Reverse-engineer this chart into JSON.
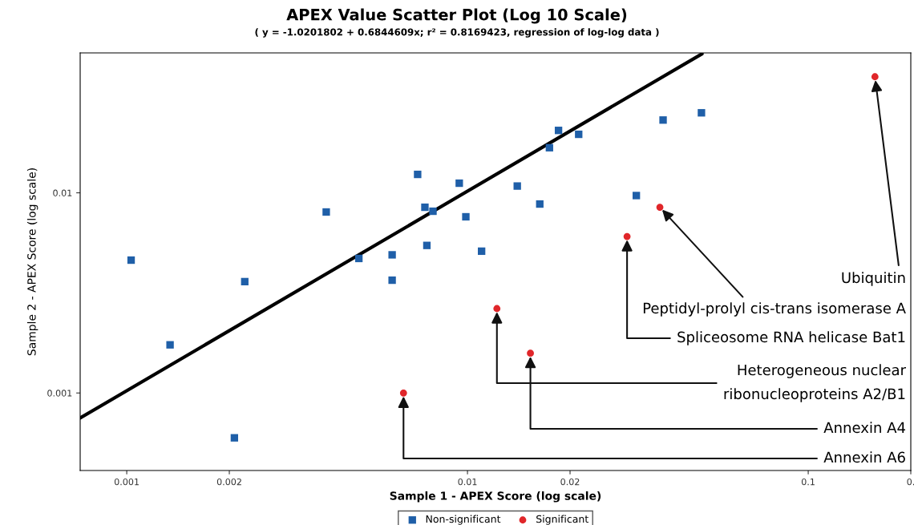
{
  "chart_data": {
    "type": "scatter",
    "title": "APEX Value Scatter Plot (Log 10 Scale)",
    "subtitle": "( y = -1.0201802 + 0.6844609x; r² = 0.8169423, regression of log-log data )",
    "xlabel": "Sample 1 - APEX Score (log scale)",
    "ylabel": "Sample 2 - APEX Score (log scale)",
    "log": "xy",
    "xlim": [
      0.00073,
      0.2
    ],
    "ylim": [
      0.00041,
      0.05
    ],
    "xticks": [
      0.001,
      0.002,
      0.01,
      0.02,
      0.1,
      {
        "value": 0.2,
        "label": "0."
      }
    ],
    "yticks": [
      0.001,
      0.01
    ],
    "grid": false,
    "legend": "bottom",
    "series": [
      {
        "name": "Non-significant",
        "color": "#1f5fa8",
        "marker": "square",
        "x": [
          0.00103,
          0.00134,
          0.00222,
          0.00207,
          0.00385,
          0.0048,
          0.00601,
          0.00601,
          0.00714,
          0.0075,
          0.00792,
          0.0076,
          0.00946,
          0.00989,
          0.011,
          0.014,
          0.0163,
          0.0174,
          0.0185,
          0.0212,
          0.0313,
          0.0375,
          0.0486
        ],
        "values": [
          0.00461,
          0.00174,
          0.0036,
          0.000597,
          0.00802,
          0.0047,
          0.0049,
          0.00366,
          0.01236,
          0.00847,
          0.00809,
          0.00546,
          0.01117,
          0.00759,
          0.00511,
          0.01081,
          0.00879,
          0.0168,
          0.0205,
          0.0196,
          0.00969,
          0.0231,
          0.0251
        ]
      },
      {
        "name": "Significant",
        "color": "#e0262a",
        "marker": "circle",
        "x": [
          0.157,
          0.0367,
          0.0294,
          0.0122,
          0.0153,
          0.00649
        ],
        "values": [
          0.038,
          0.00847,
          0.00605,
          0.00264,
          0.00158,
          0.001
        ]
      },
      {
        "type": "line",
        "color": "#000000",
        "marker": "none",
        "line_style": "solid",
        "x": [
          0.00073,
          0.0488
        ],
        "values": [
          0.00075,
          0.0495
        ]
      }
    ],
    "annotations": [
      {
        "text": "Ubiquitin",
        "x": 0.157,
        "y": 0.038
      },
      {
        "text": "Peptidyl-prolyl cis-trans isomerase A",
        "x": 0.0367,
        "y": 0.00847
      },
      {
        "text": "Spliceosome RNA helicase Bat1",
        "x": 0.0294,
        "y": 0.00605
      },
      {
        "text": "Heterogeneous nuclear\nribonucleoproteins A2/B1",
        "x": 0.0122,
        "y": 0.00264
      },
      {
        "text": "Annexin A4",
        "x": 0.0153,
        "y": 0.00158
      },
      {
        "text": "Annexin A6",
        "x": 0.00649,
        "y": 0.001
      }
    ]
  }
}
